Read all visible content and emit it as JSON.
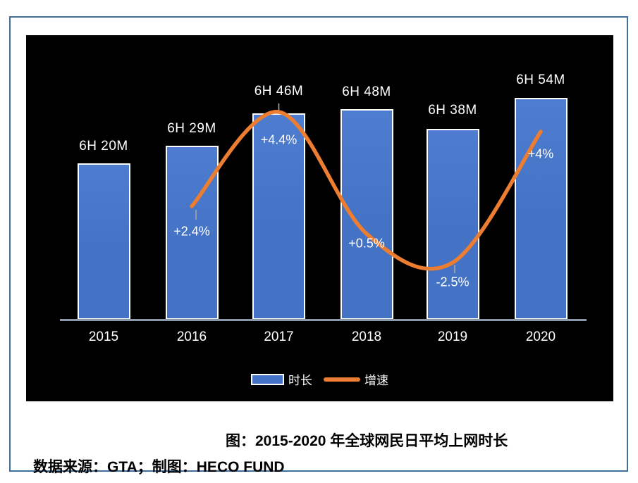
{
  "page": {
    "caption": "图：2015-2020 年全球网民日平均上网时长",
    "source": "数据来源：GTA；制图：HECO FUND"
  },
  "legend": {
    "bars_label": "时长",
    "line_label": "增速"
  },
  "colors": {
    "bar_fill": "#4472C4",
    "bar_border": "#FFFFFF",
    "line": "#ED7D31",
    "axis": "#8A99AB",
    "leader": "#A6A6A6",
    "chart_bg": "#000000",
    "frame_border": "#3D6E9E",
    "label_text": "#FFFFFF",
    "caption_text": "#000000"
  },
  "chart_data": {
    "type": "bar",
    "combo": "bar+line",
    "title": "图：2015-2020 年全球网民日平均上网时长",
    "categories": [
      "2015",
      "2016",
      "2017",
      "2018",
      "2019",
      "2020"
    ],
    "series": [
      {
        "name": "时长",
        "type": "bar",
        "unit": "daily online time (hours/minutes)",
        "labels": [
          "6H 20M",
          "6H 29M",
          "6H 46M",
          "6H 48M",
          "6H 38M",
          "6H 54M"
        ],
        "values_minutes": [
          380,
          389,
          406,
          408,
          398,
          414
        ]
      },
      {
        "name": "增速",
        "type": "line",
        "unit": "YoY growth %",
        "labels": [
          null,
          "+2.4%",
          "+4.4%",
          "+0.5%",
          "-2.5%",
          "+4%"
        ],
        "values_pct": [
          null,
          2.4,
          4.4,
          0.5,
          -2.5,
          4.0
        ]
      }
    ],
    "xlabel": "",
    "ylabel": "",
    "grid": false,
    "legend_position": "bottom",
    "background": "black",
    "value_axis_baseline_minutes": 299
  }
}
